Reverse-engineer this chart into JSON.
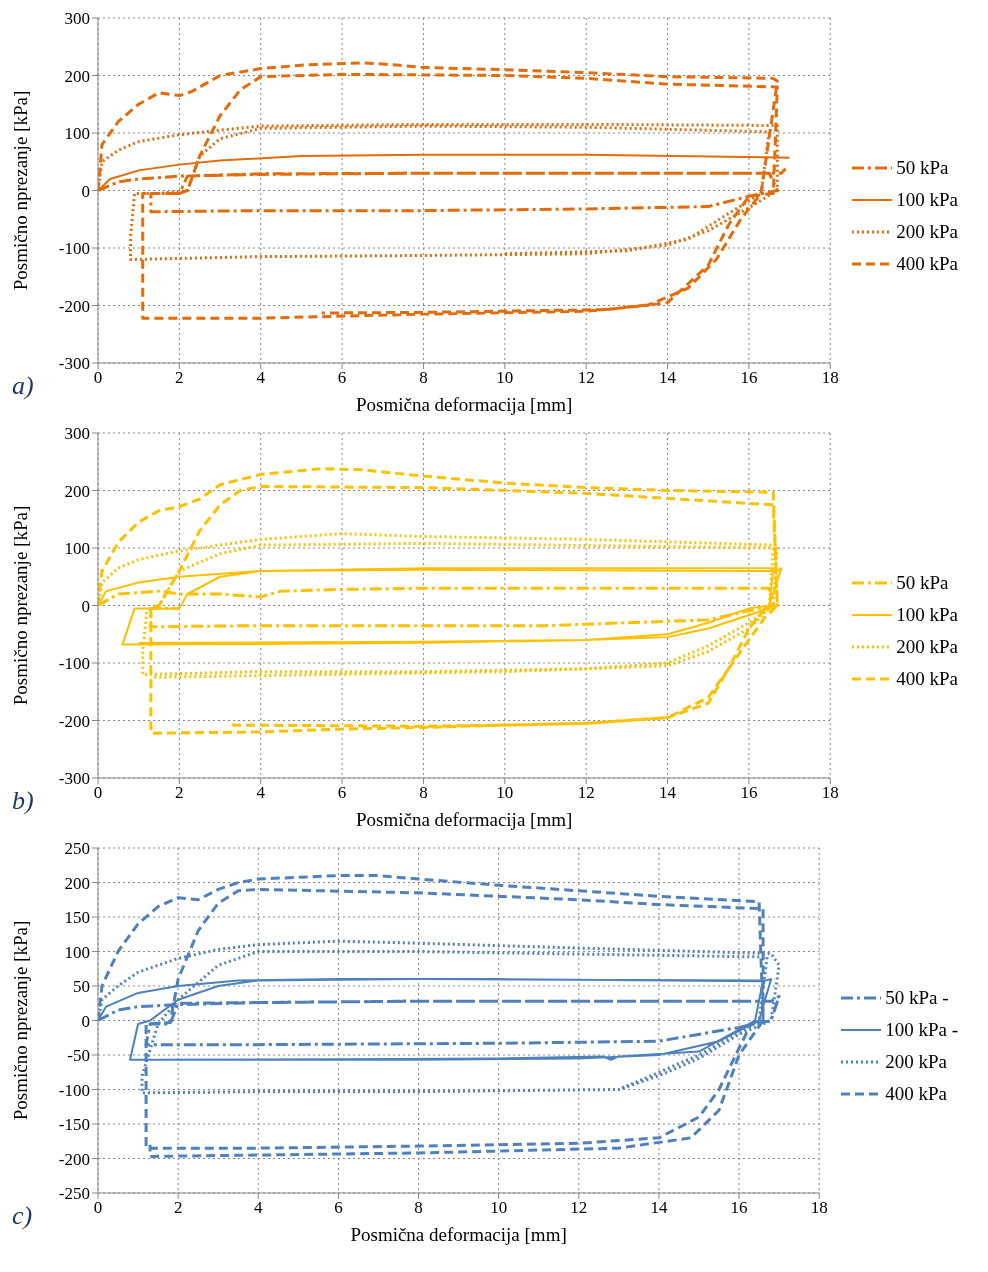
{
  "chart_data": [
    {
      "type": "line",
      "xlabel": "Posmična deformacija [mm]",
      "ylabel": "Posmično nprezanje [kPa]",
      "annotations": [
        "a)"
      ],
      "xlim": [
        0,
        18
      ],
      "xticks": [
        0,
        2,
        4,
        6,
        8,
        10,
        12,
        14,
        16,
        18
      ],
      "ylim": [
        -300,
        300
      ],
      "yticks": [
        -300,
        -200,
        -100,
        0,
        100,
        200,
        300
      ],
      "grid": true,
      "legend": "right",
      "series": [
        {
          "name": "50 kPa",
          "color": "#e46c0a",
          "line_style": "dashdot",
          "x": [
            0,
            0.5,
            1,
            2,
            4,
            8,
            12,
            16.5,
            16.7,
            16,
            15,
            12,
            8,
            4,
            1.3,
            1.3,
            2,
            2.2,
            4,
            8,
            12,
            16.8,
            16.9
          ],
          "values": [
            0,
            15,
            20,
            25,
            28,
            30,
            30,
            30,
            0,
            -10,
            -28,
            -32,
            -35,
            -35,
            -37,
            -5,
            -5,
            25,
            29,
            30,
            30,
            30,
            38
          ]
        },
        {
          "name": "100 kPa",
          "color": "#e46c0a",
          "line_style": "solid",
          "x": [
            0,
            0.3,
            1,
            2,
            3,
            5,
            8,
            12,
            17
          ],
          "values": [
            0,
            20,
            35,
            45,
            52,
            60,
            62,
            62,
            57
          ]
        },
        {
          "name": "200 kPa",
          "color": "#e46c0a",
          "line_style": "dotted",
          "x": [
            0,
            0.1,
            0.5,
            1,
            2,
            3,
            4,
            8,
            12,
            16.7,
            16.7,
            16,
            15,
            14,
            12,
            8,
            4,
            0.8,
            0.8,
            0.9,
            1.5,
            2.2,
            2.5,
            3,
            4,
            8,
            12,
            16.5,
            16.3,
            15.5,
            14.5,
            13,
            10
          ],
          "values": [
            0,
            50,
            70,
            85,
            97,
            105,
            112,
            115,
            115,
            113,
            0,
            -30,
            -70,
            -95,
            -110,
            -113,
            -115,
            -120,
            -80,
            -5,
            -5,
            0,
            60,
            90,
            108,
            112,
            110,
            102,
            -5,
            -40,
            -85,
            -105,
            -110
          ]
        },
        {
          "name": "400 kPa",
          "color": "#e46c0a",
          "line_style": "dashed",
          "x": [
            0,
            0.1,
            0.5,
            1,
            1.5,
            2,
            2.3,
            3,
            4,
            5,
            6.5,
            7,
            8,
            10,
            12,
            14,
            16.6,
            16.7,
            16.3,
            15.8,
            15.2,
            14.5,
            13.5,
            12,
            8,
            4,
            1.1,
            1.1,
            1.3,
            2,
            2.2,
            2.5,
            3,
            3.5,
            4,
            6,
            10,
            12,
            14,
            16.7,
            16.6,
            16,
            15.5,
            15,
            14,
            12.5,
            8,
            5.5
          ],
          "values": [
            0,
            80,
            120,
            150,
            170,
            165,
            172,
            200,
            212,
            218,
            222,
            220,
            214,
            210,
            205,
            198,
            195,
            190,
            -5,
            -50,
            -120,
            -170,
            -200,
            -210,
            -215,
            -222,
            -222,
            -5,
            -5,
            -5,
            0,
            60,
            130,
            175,
            198,
            202,
            200,
            195,
            185,
            180,
            -5,
            -10,
            -60,
            -130,
            -195,
            -207,
            -212,
            -213
          ]
        }
      ]
    },
    {
      "type": "line",
      "xlabel": "Posmična deformacija [mm]",
      "ylabel": "Posmično nprezanje [kPa]",
      "annotations": [
        "b)"
      ],
      "xlim": [
        0,
        18
      ],
      "xticks": [
        0,
        2,
        4,
        6,
        8,
        10,
        12,
        14,
        16,
        18
      ],
      "ylim": [
        -300,
        300
      ],
      "yticks": [
        -300,
        -200,
        -100,
        0,
        100,
        200,
        300
      ],
      "grid": true,
      "legend": "right",
      "series": [
        {
          "name": "50 kPa",
          "color": "#ffc000",
          "line_style": "dashdot",
          "x": [
            0,
            0.5,
            1.5,
            2,
            3,
            4,
            4.5,
            6,
            8,
            12,
            16.5,
            16.6,
            15,
            13,
            11,
            8,
            4,
            1.3,
            1.3,
            2
          ],
          "values": [
            0,
            20,
            25,
            20,
            20,
            15,
            25,
            28,
            30,
            30,
            30,
            0,
            -25,
            -30,
            -35,
            -35,
            -35,
            -37,
            -5,
            -5
          ]
        },
        {
          "name": "100 kPa",
          "color": "#ffc000",
          "line_style": "solid",
          "x": [
            0,
            0.2,
            1,
            2,
            4,
            8,
            16.7,
            16.8,
            16.5,
            16,
            15,
            14,
            12,
            8,
            4,
            0.6,
            0.9,
            2,
            2.2,
            3,
            4,
            8,
            16.6,
            16.5,
            15,
            14,
            12,
            8,
            1
          ],
          "values": [
            0,
            25,
            40,
            50,
            60,
            62,
            60,
            65,
            0,
            -5,
            -30,
            -50,
            -60,
            -65,
            -67,
            -68,
            -5,
            -5,
            20,
            50,
            60,
            65,
            65,
            -5,
            -40,
            -55,
            -60,
            -63,
            -65
          ]
        },
        {
          "name": "200 kPa",
          "color": "#ffc000",
          "line_style": "dotted",
          "x": [
            0,
            0.1,
            0.5,
            1,
            2,
            3,
            4,
            6,
            8,
            12,
            16.7,
            16.6,
            16,
            15,
            14,
            12,
            8,
            4,
            1.1,
            1.1,
            1.2,
            1.5,
            2,
            3,
            4,
            8,
            16.6,
            16.5,
            16,
            15,
            14,
            10,
            1.3
          ],
          "values": [
            0,
            40,
            65,
            80,
            95,
            105,
            115,
            125,
            120,
            115,
            105,
            0,
            -30,
            -70,
            -100,
            -110,
            -115,
            -115,
            -120,
            -80,
            -10,
            0,
            60,
            90,
            105,
            108,
            100,
            -5,
            -40,
            -80,
            -105,
            -115,
            -125
          ]
        },
        {
          "name": "400 kPa",
          "color": "#ffc000",
          "line_style": "dashed",
          "x": [
            0,
            0.1,
            0.5,
            1,
            1.5,
            2,
            2.5,
            3,
            4,
            5.5,
            6.5,
            8,
            10,
            12,
            14,
            16.6,
            16.7,
            16.4,
            16,
            15.5,
            15,
            14,
            12,
            10,
            8,
            6,
            4,
            1.3,
            1.3,
            1.5,
            2,
            2.5,
            3,
            3.5,
            4,
            8,
            12,
            16.6,
            16.7,
            16.4,
            15.5,
            15,
            14,
            12,
            10,
            8,
            3.2
          ],
          "values": [
            0,
            60,
            110,
            145,
            165,
            172,
            185,
            210,
            228,
            238,
            236,
            225,
            213,
            205,
            200,
            197,
            0,
            -5,
            -40,
            -110,
            -160,
            -195,
            -205,
            -208,
            -212,
            -215,
            -220,
            -222,
            -5,
            0,
            60,
            130,
            175,
            200,
            207,
            205,
            195,
            175,
            0,
            -20,
            -110,
            -170,
            -195,
            -205,
            -208,
            -210,
            -208
          ]
        }
      ]
    },
    {
      "type": "line",
      "xlabel": "Posmična deformacija [mm]",
      "ylabel": "Posmično nprezanje [kPa]",
      "annotations": [
        "c)"
      ],
      "xlim": [
        0,
        18
      ],
      "xticks": [
        0,
        2,
        4,
        6,
        8,
        10,
        12,
        14,
        16,
        18
      ],
      "ylim": [
        -250,
        250
      ],
      "yticks": [
        -250,
        -200,
        -150,
        -100,
        -50,
        0,
        50,
        100,
        150,
        200,
        250
      ],
      "grid": true,
      "legend": "right",
      "series": [
        {
          "name": "50 kPa -",
          "color": "#4f81bd",
          "line_style": "dashdot",
          "x": [
            0,
            0.5,
            1,
            2,
            4,
            8,
            16.8,
            17,
            16.8,
            16,
            14,
            10,
            4,
            1.2,
            1.3,
            1.8,
            2,
            8,
            16.5
          ],
          "values": [
            0,
            15,
            20,
            23,
            26,
            28,
            28,
            35,
            0,
            -10,
            -30,
            -33,
            -35,
            -35,
            -5,
            -5,
            25,
            28,
            28
          ]
        },
        {
          "name": "100 kPa -",
          "color": "#4f81bd",
          "line_style": "solid",
          "x": [
            0,
            0.2,
            1,
            2,
            3.5,
            6,
            10,
            16.6,
            16.8,
            16.5,
            15.5,
            14,
            12,
            8,
            4,
            0.8,
            1,
            1.3,
            2,
            3,
            4,
            8,
            16.6,
            16.4,
            15,
            13,
            12.8,
            12.6,
            10,
            6,
            1
          ],
          "values": [
            0,
            20,
            40,
            50,
            58,
            60,
            60,
            57,
            60,
            0,
            -30,
            -50,
            -55,
            -57,
            -57,
            -57,
            -5,
            0,
            30,
            50,
            58,
            60,
            58,
            0,
            -45,
            -52,
            -57,
            -52,
            -55,
            -56,
            -57
          ]
        },
        {
          "name": "200 kPa",
          "color": "#4f81bd",
          "line_style": "dotted",
          "x": [
            0,
            0.1,
            0.5,
            1,
            2,
            3,
            4,
            6,
            8,
            12,
            16.8,
            17,
            16.8,
            16,
            15,
            14,
            13,
            8,
            4,
            1.1,
            1.1,
            1.5,
            2,
            3,
            4,
            8,
            16.7,
            16.5,
            15,
            13
          ],
          "values": [
            0,
            30,
            50,
            70,
            90,
            103,
            110,
            115,
            112,
            105,
            97,
            80,
            0,
            -20,
            -55,
            -80,
            -100,
            -103,
            -103,
            -105,
            -80,
            -5,
            30,
            80,
            100,
            100,
            92,
            0,
            -50,
            -100
          ]
        },
        {
          "name": "400 kPa",
          "color": "#4f81bd",
          "line_style": "dashed",
          "x": [
            0,
            0.1,
            0.5,
            1,
            1.5,
            2,
            2.5,
            3,
            3.5,
            4,
            6,
            7,
            8,
            10,
            12,
            14,
            16.5,
            16.6,
            16.3,
            16,
            15.5,
            15,
            14,
            12,
            8,
            4,
            1.2,
            1.2,
            1.8,
            2,
            2.5,
            3,
            3.5,
            4,
            8,
            12,
            14,
            16.6,
            16.6,
            16,
            15.5,
            14.8,
            13,
            8,
            4,
            1.3,
            1.3
          ],
          "values": [
            0,
            50,
            100,
            140,
            165,
            178,
            175,
            190,
            200,
            205,
            210,
            210,
            205,
            196,
            188,
            180,
            172,
            0,
            -5,
            -40,
            -100,
            -140,
            -170,
            -178,
            -182,
            -185,
            -185,
            -5,
            -3,
            60,
            130,
            170,
            188,
            190,
            185,
            175,
            168,
            162,
            0,
            -50,
            -130,
            -170,
            -185,
            -192,
            -195,
            -197,
            -180
          ]
        }
      ]
    }
  ]
}
